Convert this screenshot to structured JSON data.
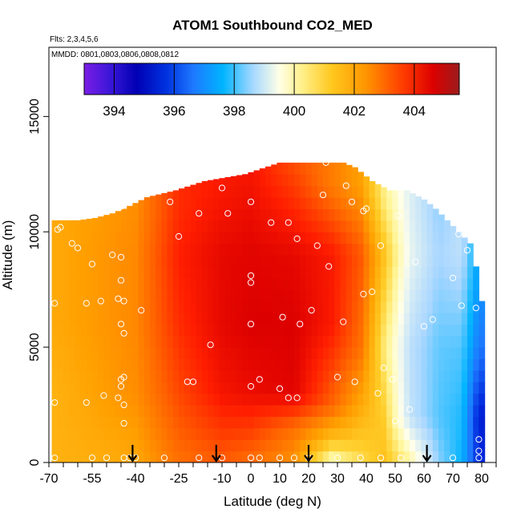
{
  "chart_data": {
    "type": "heatmap",
    "title": "ATOM1 Southbound CO2_MED",
    "subtitle_flights": "Flts: 2,3,4,5,6",
    "subtitle_dates": "MMDD: 0801,0803,0806,0808,0812",
    "xlabel": "Latitude (deg N)",
    "ylabel": "Altitude (m)",
    "xlim": [
      -70,
      85
    ],
    "ylim": [
      0,
      18000
    ],
    "x_ticks": [
      -70,
      -55,
      -40,
      -25,
      -10,
      0,
      10,
      20,
      30,
      40,
      50,
      60,
      70,
      80
    ],
    "x_tick_labels": [
      "-70",
      "-55",
      "-40",
      "-25",
      "-10",
      "0",
      "10",
      "20",
      "30",
      "40",
      "50",
      "60",
      "70",
      "80"
    ],
    "y_ticks": [
      0,
      5000,
      10000,
      15000
    ],
    "y_tick_labels": [
      "0",
      "5000",
      "10000",
      "15000"
    ],
    "colorbar": {
      "min": 393,
      "max": 405.5,
      "ticks": [
        394,
        396,
        398,
        400,
        402,
        404
      ],
      "tick_labels": [
        "394",
        "396",
        "398",
        "400",
        "402",
        "404"
      ],
      "placement": "top"
    },
    "grid": false,
    "top_profile": [
      [
        -68,
        10500
      ],
      [
        -60,
        10500
      ],
      [
        -54,
        10600
      ],
      [
        -48,
        10800
      ],
      [
        -44,
        11000
      ],
      [
        -36,
        11500
      ],
      [
        -26,
        11800
      ],
      [
        -16,
        12200
      ],
      [
        -2,
        12500
      ],
      [
        10,
        13000
      ],
      [
        22,
        13000
      ],
      [
        32,
        13000
      ],
      [
        36,
        12800
      ],
      [
        42,
        12200
      ],
      [
        48,
        11800
      ],
      [
        54,
        11800
      ],
      [
        60,
        11400
      ],
      [
        64,
        11000
      ],
      [
        68,
        10500
      ],
      [
        72,
        10000
      ],
      [
        76,
        9500
      ],
      [
        78,
        8500
      ],
      [
        80,
        7000
      ]
    ],
    "cell_width_deg": 2,
    "cell_height_m": 500,
    "field_anchors": [
      {
        "lat": -68,
        "bands": [
          [
            0,
            401.8
          ],
          [
            3000,
            401.8
          ],
          [
            6000,
            402.0
          ],
          [
            9000,
            402.0
          ],
          [
            11000,
            402.0
          ]
        ]
      },
      {
        "lat": -40,
        "bands": [
          [
            0,
            402.0
          ],
          [
            3000,
            402.5
          ],
          [
            6000,
            402.6
          ],
          [
            9000,
            402.6
          ],
          [
            11000,
            402.5
          ]
        ]
      },
      {
        "lat": -25,
        "bands": [
          [
            0,
            403.0
          ],
          [
            3000,
            403.6
          ],
          [
            6000,
            404.0
          ],
          [
            9000,
            404.2
          ],
          [
            11000,
            404.0
          ]
        ]
      },
      {
        "lat": -10,
        "bands": [
          [
            0,
            403.3
          ],
          [
            3000,
            404.4
          ],
          [
            6000,
            404.7
          ],
          [
            9000,
            404.7
          ],
          [
            12000,
            404.3
          ]
        ]
      },
      {
        "lat": 0,
        "bands": [
          [
            0,
            403.0
          ],
          [
            3000,
            404.6
          ],
          [
            6000,
            404.9
          ],
          [
            9000,
            404.8
          ],
          [
            12500,
            404.4
          ]
        ]
      },
      {
        "lat": 15,
        "bands": [
          [
            0,
            402.4
          ],
          [
            1500,
            403.0
          ],
          [
            3000,
            404.8
          ],
          [
            6000,
            404.9
          ],
          [
            9000,
            404.7
          ],
          [
            13000,
            403.5
          ]
        ]
      },
      {
        "lat": 28,
        "bands": [
          [
            0,
            399.8
          ],
          [
            1000,
            401.5
          ],
          [
            2500,
            403.2
          ],
          [
            6000,
            404.3
          ],
          [
            9000,
            404.3
          ],
          [
            12000,
            402.8
          ]
        ]
      },
      {
        "lat": 38,
        "bands": [
          [
            0,
            400.8
          ],
          [
            2000,
            401.8
          ],
          [
            5000,
            403.0
          ],
          [
            9000,
            403.4
          ],
          [
            12000,
            402.2
          ]
        ]
      },
      {
        "lat": 46,
        "bands": [
          [
            0,
            401.5
          ],
          [
            2000,
            401.2
          ],
          [
            5000,
            400.6
          ],
          [
            9000,
            401.5
          ],
          [
            11500,
            400.5
          ]
        ]
      },
      {
        "lat": 55,
        "bands": [
          [
            0,
            400.3
          ],
          [
            2000,
            398.6
          ],
          [
            5000,
            398.5
          ],
          [
            9000,
            399.2
          ],
          [
            11500,
            399.0
          ]
        ]
      },
      {
        "lat": 65,
        "bands": [
          [
            0,
            398.0
          ],
          [
            2000,
            397.6
          ],
          [
            5000,
            397.7
          ],
          [
            9000,
            398.2
          ],
          [
            11000,
            398.0
          ]
        ]
      },
      {
        "lat": 73,
        "bands": [
          [
            0,
            397.0
          ],
          [
            2000,
            397.2
          ],
          [
            5000,
            397.6
          ],
          [
            9000,
            398.5
          ]
        ]
      },
      {
        "lat": 79,
        "bands": [
          [
            0,
            395.0
          ],
          [
            2000,
            394.8
          ],
          [
            5000,
            396.0
          ],
          [
            8000,
            396.5
          ]
        ]
      }
    ],
    "sample_points": [
      [
        -68,
        200
      ],
      [
        -55,
        200
      ],
      [
        -50,
        200
      ],
      [
        -44,
        200
      ],
      [
        -42,
        200
      ],
      [
        -40,
        200
      ],
      [
        -30,
        200
      ],
      [
        -18,
        200
      ],
      [
        -10,
        200
      ],
      [
        0,
        200
      ],
      [
        3,
        200
      ],
      [
        10,
        200
      ],
      [
        15,
        200
      ],
      [
        20,
        200
      ],
      [
        30,
        200
      ],
      [
        38,
        200
      ],
      [
        45,
        200
      ],
      [
        52,
        200
      ],
      [
        60,
        200
      ],
      [
        70,
        200
      ],
      [
        79,
        200
      ],
      [
        79,
        500
      ],
      [
        79,
        1000
      ],
      [
        -68,
        2600
      ],
      [
        -57,
        2600
      ],
      [
        -51,
        2900
      ],
      [
        -46,
        2800
      ],
      [
        -45,
        3300
      ],
      [
        -44,
        2500
      ],
      [
        -44,
        1700
      ],
      [
        -45,
        3600
      ],
      [
        -44,
        3700
      ],
      [
        -22,
        3500
      ],
      [
        -20,
        3500
      ],
      [
        0,
        3300
      ],
      [
        3,
        3600
      ],
      [
        10,
        3200
      ],
      [
        13,
        2800
      ],
      [
        16,
        2800
      ],
      [
        30,
        3700
      ],
      [
        36,
        3500
      ],
      [
        44,
        3000
      ],
      [
        46,
        4100
      ],
      [
        49,
        3600
      ],
      [
        50,
        1800
      ],
      [
        55,
        2300
      ],
      [
        -44,
        5600
      ],
      [
        -45,
        6000
      ],
      [
        -46,
        7100
      ],
      [
        -44,
        7000
      ],
      [
        -38,
        6600
      ],
      [
        -52,
        7000
      ],
      [
        -57,
        6900
      ],
      [
        -68,
        6900
      ],
      [
        -14,
        5100
      ],
      [
        0,
        6000
      ],
      [
        11,
        6300
      ],
      [
        17,
        6000
      ],
      [
        21,
        6600
      ],
      [
        32,
        6100
      ],
      [
        39,
        7300
      ],
      [
        42,
        7400
      ],
      [
        60,
        5900
      ],
      [
        63,
        6200
      ],
      [
        73,
        6800
      ],
      [
        78,
        6700
      ],
      [
        0,
        7800
      ],
      [
        0,
        8100
      ],
      [
        -45,
        7900
      ],
      [
        -55,
        8600
      ],
      [
        -48,
        9000
      ],
      [
        -45,
        8900
      ],
      [
        -60,
        9300
      ],
      [
        -62,
        9500
      ],
      [
        -66,
        10200
      ],
      [
        -67,
        10100
      ],
      [
        -25,
        9800
      ],
      [
        -8,
        10800
      ],
      [
        7,
        10400
      ],
      [
        13,
        10400
      ],
      [
        16,
        9700
      ],
      [
        23,
        9400
      ],
      [
        27,
        8500
      ],
      [
        39,
        10900
      ],
      [
        45,
        9400
      ],
      [
        51,
        10700
      ],
      [
        57,
        8700
      ],
      [
        70,
        8000
      ],
      [
        72,
        9900
      ],
      [
        75,
        9200
      ],
      [
        79,
        10000
      ],
      [
        -45,
        11100
      ],
      [
        -45,
        11600
      ],
      [
        -28,
        11300
      ],
      [
        -18,
        10800
      ],
      [
        -10,
        11900
      ],
      [
        0,
        11300
      ],
      [
        25,
        11600
      ],
      [
        33,
        12000
      ],
      [
        35,
        11300
      ],
      [
        40,
        11000
      ],
      [
        26,
        13000
      ]
    ],
    "arrow_latitudes": [
      -41,
      -12,
      20,
      61
    ]
  }
}
